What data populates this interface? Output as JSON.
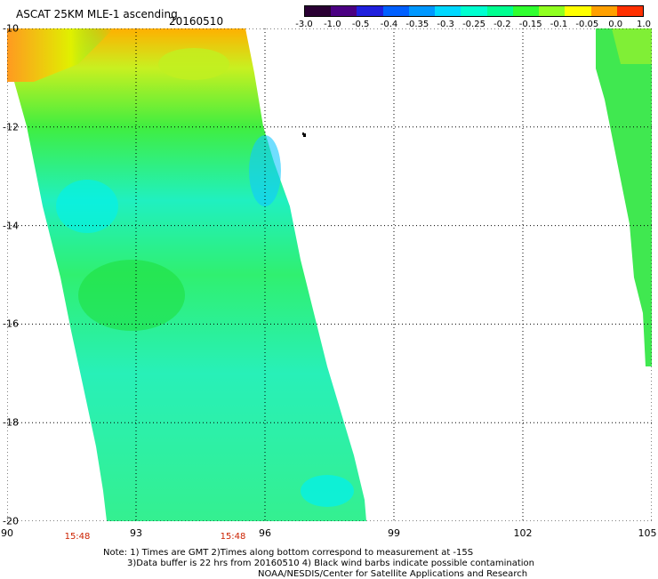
{
  "header": {
    "title": "ASCAT 25KM MLE-1 ascending",
    "date": "20160510"
  },
  "colorbar": {
    "ticks": [
      "-3.0",
      "-1.0",
      "-0.5",
      "-0.4",
      "-0.35",
      "-0.3",
      "-0.25",
      "-0.2",
      "-0.15",
      "-0.1",
      "-0.05",
      "0.0",
      "1.0"
    ],
    "colors": [
      "#2a0033",
      "#4b0082",
      "#2020dd",
      "#0060ff",
      "#0098ff",
      "#00d8ff",
      "#00ffd0",
      "#00ff90",
      "#30ff30",
      "#90ff20",
      "#ffff00",
      "#ffa000",
      "#ff3000"
    ]
  },
  "axes": {
    "x_ticks": [
      "90",
      "93",
      "96",
      "99",
      "102",
      "105"
    ],
    "y_ticks": [
      "-10",
      "-12",
      "-14",
      "-16",
      "-18",
      "-20"
    ],
    "x_range": [
      90,
      105
    ],
    "y_range": [
      -20,
      -10
    ]
  },
  "times": [
    "15:48",
    "15:48"
  ],
  "notes": {
    "line1": "Note: 1) Times are GMT 2)Times along bottom correspond to measurement at -15S",
    "line2": "3)Data buffer is 22 hrs from 20160510 4) Black wind barbs indicate possible contamination",
    "line3": "NOAA/NESDIS/Center for Satellite Applications and Research"
  }
}
